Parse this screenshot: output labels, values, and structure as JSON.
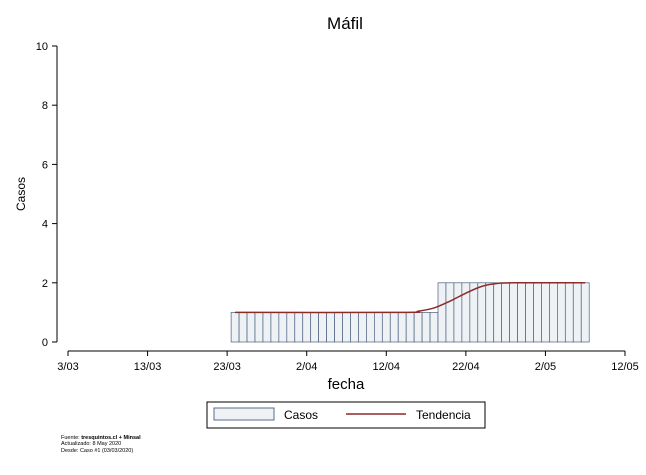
{
  "chart_data": {
    "type": "bar",
    "title": "Máfil",
    "xlabel": "fecha",
    "ylabel": "Casos",
    "ylim": [
      0,
      10
    ],
    "yticks": [
      0,
      2,
      4,
      6,
      8,
      10
    ],
    "xlim": [
      "2020-03-03",
      "2020-05-12"
    ],
    "xticks": [
      {
        "date": "2020-03-03",
        "label": "3/03"
      },
      {
        "date": "2020-03-13",
        "label": "13/03"
      },
      {
        "date": "2020-03-23",
        "label": "23/03"
      },
      {
        "date": "2020-04-02",
        "label": "2/04"
      },
      {
        "date": "2020-04-12",
        "label": "12/04"
      },
      {
        "date": "2020-04-22",
        "label": "22/04"
      },
      {
        "date": "2020-05-02",
        "label": "2/05"
      },
      {
        "date": "2020-05-12",
        "label": "12/05"
      }
    ],
    "grid": false,
    "legend_position": "bottom",
    "series": [
      {
        "name": "Casos",
        "type": "bar",
        "color": "#eef2f5",
        "edge_color": "#4a5f80",
        "segments": [
          {
            "start": "2020-03-24",
            "end": "2020-04-18",
            "value": 1
          },
          {
            "start": "2020-04-19",
            "end": "2020-05-07",
            "value": 2
          }
        ]
      },
      {
        "name": "Tendencia",
        "type": "line",
        "color": "#8b2a2a",
        "points": [
          {
            "x": "2020-03-24",
            "y": 1
          },
          {
            "x": "2020-04-14",
            "y": 1
          },
          {
            "x": "2020-04-16",
            "y": 1.04
          },
          {
            "x": "2020-04-18",
            "y": 1.15
          },
          {
            "x": "2020-04-20",
            "y": 1.38
          },
          {
            "x": "2020-04-22",
            "y": 1.65
          },
          {
            "x": "2020-04-24",
            "y": 1.88
          },
          {
            "x": "2020-04-26",
            "y": 1.98
          },
          {
            "x": "2020-04-28",
            "y": 2
          },
          {
            "x": "2020-05-07",
            "y": 2
          }
        ]
      }
    ]
  },
  "footnote": {
    "source_prefix": "Fuente: ",
    "source_bold": "tresquintos.cl + Minsal",
    "updated": "Actualizado: 8 May 2020",
    "since": "Desde: Caso #1  (03/03/2020)"
  }
}
